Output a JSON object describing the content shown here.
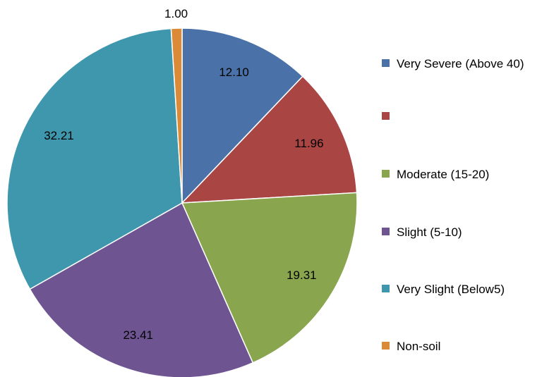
{
  "chart_data": {
    "type": "pie",
    "categories": [
      "Very Severe (Above 40)",
      null,
      "Moderate (15-20)",
      "Slight (5-10)",
      "Very Slight (Below5)",
      "Non-soil"
    ],
    "values": [
      12.1,
      11.96,
      19.31,
      23.41,
      32.21,
      1.0
    ],
    "value_labels": [
      "12.10",
      "11.96",
      "19.31",
      "23.41",
      "32.21",
      "1.00"
    ],
    "colors": [
      "#4a72a8",
      "#a94543",
      "#89a64e",
      "#6e5592",
      "#3f97ad",
      "#db8a37"
    ],
    "legend": "right"
  }
}
